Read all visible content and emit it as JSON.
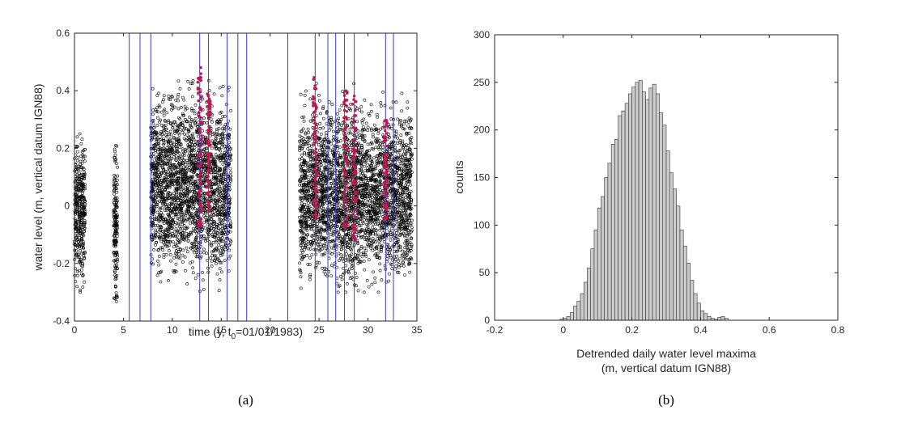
{
  "chart_data": [
    {
      "type": "scatter",
      "panel_label": "(a)",
      "xlabel_main": "time (y, t",
      "xlabel_sub": "0",
      "xlabel_tail": "=01/01/1983)",
      "ylabel": "water level (m, vertical datum IGN88)",
      "xlim": [
        0,
        35
      ],
      "ylim": [
        -0.4,
        0.6
      ],
      "xticks": [
        "0",
        "5",
        "10",
        "15",
        "20",
        "25",
        "30",
        "35"
      ],
      "yticks": [
        "-0.4",
        "-0.2",
        "0",
        "0.2",
        "0.4",
        "0.6"
      ],
      "colors": {
        "points": "#000000",
        "vlines": "#3a3ad0",
        "highlight": "#c0164e"
      },
      "data_segments": [
        {
          "x": [
            0.0,
            1.1
          ],
          "ymin": -0.3,
          "ymax": 0.33
        },
        {
          "x": [
            4.0,
            4.4
          ],
          "ymin": -0.37,
          "ymax": 0.3
        },
        {
          "x": [
            7.8,
            16.0
          ],
          "ymin": -0.3,
          "ymax": 0.5
        },
        {
          "x": [
            23.0,
            34.5
          ],
          "ymin": -0.3,
          "ymax": 0.45
        }
      ],
      "vertical_lines_x": [
        5.6,
        6.7,
        7.8,
        12.8,
        13.7,
        15.6,
        16.7,
        17.6,
        21.8,
        24.6,
        25.9,
        26.7,
        27.6,
        28.6,
        31.8,
        32.6
      ],
      "highlight_bands": [
        {
          "x": [
            12.6,
            13.0
          ],
          "ymin": -0.08,
          "ymax": 0.49
        },
        {
          "x": [
            13.5,
            13.9
          ],
          "ymin": -0.02,
          "ymax": 0.4
        },
        {
          "x": [
            24.4,
            24.8
          ],
          "ymin": -0.05,
          "ymax": 0.45
        },
        {
          "x": [
            27.5,
            27.9
          ],
          "ymin": -0.08,
          "ymax": 0.4
        },
        {
          "x": [
            28.4,
            28.8
          ],
          "ymin": -0.12,
          "ymax": 0.41
        },
        {
          "x": [
            31.6,
            32.0
          ],
          "ymin": -0.05,
          "ymax": 0.3
        }
      ]
    },
    {
      "type": "bar",
      "panel_label": "(b)",
      "xlabel": "Detrended daily water level maxima",
      "xlabel2": "(m, vertical datum IGN88)",
      "ylabel": "counts",
      "xlim": [
        -0.2,
        0.8
      ],
      "ylim": [
        0,
        300
      ],
      "xticks": [
        "-0.2",
        "0",
        "0.2",
        "0.4",
        "0.6",
        "0.8"
      ],
      "yticks": [
        "0",
        "50",
        "100",
        "150",
        "200",
        "250",
        "300"
      ],
      "bin_start": -0.01,
      "bin_width": 0.01,
      "counts": [
        1,
        2,
        4,
        8,
        15,
        20,
        28,
        40,
        55,
        75,
        95,
        118,
        130,
        150,
        165,
        185,
        190,
        215,
        220,
        228,
        238,
        245,
        250,
        252,
        240,
        232,
        244,
        248,
        238,
        218,
        205,
        178,
        155,
        138,
        120,
        95,
        78,
        60,
        42,
        28,
        18,
        10,
        7,
        4,
        2,
        1,
        3,
        4,
        2
      ],
      "colors": {
        "bar_fill": "#cccccc",
        "bar_edge": "#333333"
      }
    }
  ]
}
